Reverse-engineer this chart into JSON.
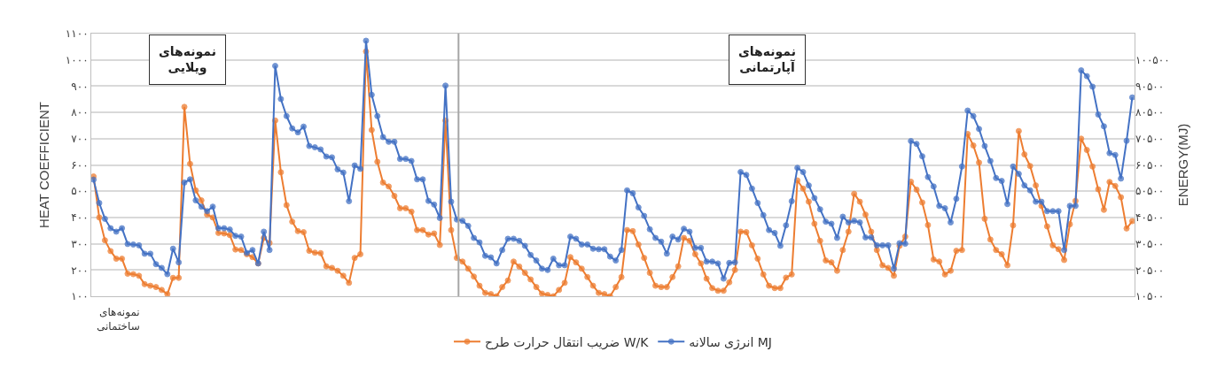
{
  "chart_data": {
    "type": "line",
    "xlabel": "نمونه‌های\nساختمانی",
    "ylabel": "HEAT COEFFICIENT",
    "y2label": "ENERGY(MJ)",
    "annotations": [
      "نمونه‌های\nویلایی",
      "نمونه‌های\nآپارتمانی"
    ],
    "categories": [
      null,
      null,
      null,
      null,
      null,
      null,
      null,
      null,
      null,
      null,
      null,
      null,
      null,
      null,
      null,
      null,
      null,
      null,
      null,
      null,
      null,
      null,
      null,
      null,
      null,
      null,
      null,
      null,
      null,
      null,
      null,
      null,
      null,
      null,
      null,
      null,
      null,
      null,
      null,
      null,
      null,
      null,
      null,
      null,
      null,
      null,
      null,
      null,
      null,
      null,
      null,
      null,
      null,
      null,
      null,
      null,
      null,
      null,
      null,
      null,
      null,
      null,
      null,
      null,
      null,
      null,
      null,
      null,
      null,
      null,
      null,
      null,
      null,
      null,
      null,
      null,
      null,
      null,
      null,
      null,
      null,
      null,
      null,
      null,
      null,
      null,
      null,
      null,
      null,
      null,
      null,
      null,
      null,
      null,
      null,
      null,
      null,
      null,
      null,
      null,
      null,
      null,
      null,
      null,
      null,
      null,
      null,
      null,
      null,
      null,
      null,
      null,
      null,
      null,
      null,
      null,
      null,
      null,
      null,
      null,
      null,
      null,
      null,
      null,
      null,
      null,
      null,
      null,
      null,
      null,
      null,
      null,
      null,
      null,
      null,
      null,
      null,
      null,
      null,
      null,
      null,
      null,
      null,
      null,
      null,
      null,
      null,
      null,
      null,
      null,
      null,
      null,
      null,
      null,
      null,
      null,
      null,
      null,
      null,
      null,
      null,
      null,
      null,
      null,
      null,
      null,
      null,
      null,
      null,
      null,
      null,
      null,
      null,
      null,
      null,
      null,
      null,
      null,
      null,
      null,
      null,
      null,
      null,
      null
    ],
    "series": [
      {
        "name": "انرژی سالانه MJ",
        "color": "#4472c4",
        "axis": "y2",
        "values": [
          54900,
          46000,
          40000,
          36400,
          35100,
          36400,
          30400,
          30200,
          29900,
          26700,
          26700,
          22700,
          21300,
          18900,
          28600,
          23400,
          53800,
          55000,
          47000,
          44600,
          42900,
          44600,
          36400,
          36400,
          35900,
          33500,
          33200,
          27000,
          28100,
          23000,
          35100,
          28100,
          98200,
          85600,
          79100,
          74400,
          72900,
          75100,
          67700,
          67200,
          66400,
          63700,
          63400,
          58800,
          57600,
          46700,
          60300,
          59000,
          107800,
          87200,
          79100,
          71100,
          69300,
          69300,
          62800,
          62800,
          62000,
          55000,
          55000,
          46800,
          45400,
          40300,
          90700,
          46500,
          39700,
          39200,
          37300,
          32700,
          31000,
          25900,
          25300,
          23000,
          28100,
          32400,
          32400,
          31600,
          29700,
          26200,
          24100,
          21000,
          20500,
          24800,
          22300,
          22300,
          33200,
          32400,
          30200,
          30200,
          28600,
          28400,
          28400,
          25600,
          24100,
          28100,
          50800,
          49700,
          44300,
          41100,
          36000,
          32700,
          31300,
          26700,
          33200,
          32100,
          36200,
          35100,
          28900,
          28900,
          23700,
          23700,
          23000,
          17200,
          23200,
          23400,
          57800,
          56700,
          51500,
          46000,
          41400,
          35700,
          34600,
          29700,
          37500,
          46700,
          59400,
          57800,
          52700,
          47900,
          43600,
          38900,
          38100,
          32700,
          40800,
          38600,
          39200,
          38600,
          32900,
          32900,
          29900,
          29900,
          29900,
          21000,
          30700,
          30500,
          69600,
          68500,
          63800,
          55900,
          52300,
          44900,
          44000,
          38600,
          47600,
          59900,
          81200,
          79100,
          74200,
          67700,
          62000,
          55500,
          54400,
          45600,
          59900,
          57100,
          52700,
          50800,
          46500,
          46500,
          42900,
          42900,
          42900,
          28100,
          44900,
          44900,
          96500,
          94300,
          90300,
          79700,
          75200,
          65000,
          64300,
          55300,
          69700,
          86200
        ]
      },
      {
        "name": "ضریب انتقال حرارت طرح W/K",
        "color": "#ed7d31",
        "values": [
          556,
          400,
          313,
          272,
          243,
          243,
          186,
          184,
          178,
          146,
          140,
          135,
          124,
          108,
          170,
          170,
          821,
          604,
          503,
          465,
          411,
          400,
          341,
          339,
          333,
          278,
          276,
          260,
          249,
          225,
          322,
          303,
          769,
          572,
          447,
          384,
          348,
          344,
          273,
          266,
          264,
          214,
          208,
          197,
          178,
          151,
          246,
          260,
          1032,
          733,
          612,
          533,
          518,
          482,
          435,
          435,
          422,
          352,
          352,
          335,
          339,
          295,
          769,
          352,
          246,
          232,
          205,
          175,
          140,
          113,
          108,
          100,
          135,
          160,
          232,
          213,
          189,
          164,
          135,
          110,
          105,
          100,
          124,
          151,
          249,
          229,
          205,
          173,
          140,
          113,
          108,
          100,
          135,
          173,
          352,
          348,
          297,
          246,
          189,
          140,
          135,
          135,
          173,
          214,
          322,
          311,
          260,
          225,
          167,
          131,
          121,
          121,
          153,
          200,
          346,
          344,
          294,
          243,
          183,
          140,
          131,
          131,
          171,
          183,
          541,
          510,
          460,
          376,
          311,
          236,
          229,
          197,
          276,
          346,
          490,
          460,
          411,
          346,
          276,
          218,
          208,
          178,
          292,
          327,
          536,
          506,
          457,
          371,
          240,
          232,
          183,
          197,
          273,
          276,
          718,
          674,
          609,
          395,
          316,
          276,
          260,
          218,
          370,
          729,
          640,
          596,
          522,
          444,
          366,
          294,
          279,
          238,
          374,
          463,
          700,
          657,
          594,
          507,
          429,
          535,
          520,
          477,
          358,
          386
        ]
      }
    ],
    "ylim": [
      100,
      1100
    ],
    "yticks": [
      {
        "value": 100,
        "label": "۱۰۰"
      },
      {
        "value": 200,
        "label": "۲۰۰"
      },
      {
        "value": 300,
        "label": "۳۰۰"
      },
      {
        "value": 400,
        "label": "۴۰۰"
      },
      {
        "value": 500,
        "label": "۵۰۰"
      },
      {
        "value": 600,
        "label": "۶۰۰"
      },
      {
        "value": 700,
        "label": "۷۰۰"
      },
      {
        "value": 800,
        "label": "۸۰۰"
      },
      {
        "value": 900,
        "label": "۹۰۰"
      },
      {
        "value": 1000,
        "label": "۱۰۰۰"
      },
      {
        "value": 1100,
        "label": "۱۱۰۰"
      }
    ],
    "y2lim": [
      10500,
      110500
    ],
    "y2ticks": [
      {
        "value": 10500,
        "label": "۱۰۵۰۰"
      },
      {
        "value": 20500,
        "label": "۲۰۵۰۰"
      },
      {
        "value": 30500,
        "label": "۳۰۵۰۰"
      },
      {
        "value": 40500,
        "label": "۴۰۵۰۰"
      },
      {
        "value": 50500,
        "label": "۵۰۵۰۰"
      },
      {
        "value": 60500,
        "label": "۶۰۵۰۰"
      },
      {
        "value": 70500,
        "label": "۷۰۵۰۰"
      },
      {
        "value": 80500,
        "label": "۸۰۵۰۰"
      },
      {
        "value": 90500,
        "label": "۹۰۵۰۰"
      },
      {
        "value": 100500,
        "label": "۱۰۰۵۰۰"
      }
    ],
    "grid": "y",
    "legend": "bottom",
    "marker": "circle",
    "line_style": "solid"
  }
}
